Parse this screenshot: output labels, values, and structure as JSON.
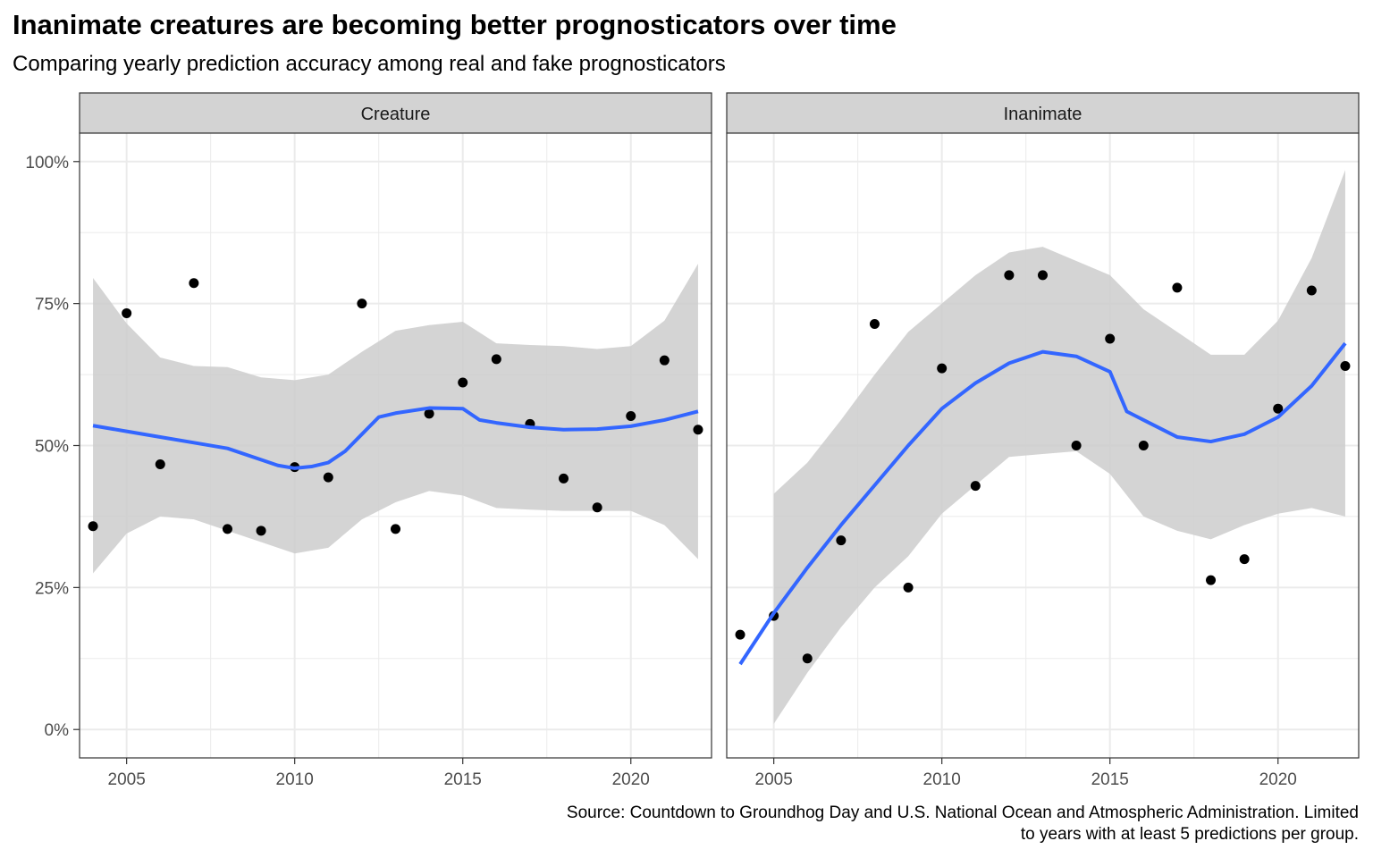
{
  "chart_data": {
    "type": "scatter",
    "title": "Inanimate creatures are becoming better prognosticators over time",
    "subtitle": "Comparing yearly prediction accuracy among real and fake prognosticators",
    "caption_lines": [
      "Source: Countdown to Groundhog Day and U.S. National Ocean and Atmospheric Administration. Limited",
      "to years with at least 5 predictions per group."
    ],
    "xlim": [
      2003.6,
      2022.4
    ],
    "ylim": [
      -0.05,
      1.05
    ],
    "x_ticks": [
      2005,
      2010,
      2015,
      2020
    ],
    "x_tick_labels": [
      "2005",
      "2010",
      "2015",
      "2020"
    ],
    "y_ticks": [
      0,
      0.25,
      0.5,
      0.75,
      1.0
    ],
    "y_tick_labels": [
      "0%",
      "25%",
      "50%",
      "75%",
      "100%"
    ],
    "grid": true,
    "colors": {
      "point": "#000000",
      "smooth_line": "#3366FF",
      "ribbon": "#CCCCCC",
      "strip": "#D3D3D3",
      "grid": "#EBEBEB"
    },
    "panels": [
      {
        "strip_label": "Creature",
        "points": [
          [
            2004,
            0.358
          ],
          [
            2005,
            0.733
          ],
          [
            2006,
            0.467
          ],
          [
            2007,
            0.786
          ],
          [
            2008,
            0.353
          ],
          [
            2009,
            0.35
          ],
          [
            2010,
            0.462
          ],
          [
            2011,
            0.444
          ],
          [
            2012,
            0.75
          ],
          [
            2013,
            0.353
          ],
          [
            2014,
            0.556
          ],
          [
            2015,
            0.611
          ],
          [
            2016,
            0.652
          ],
          [
            2017,
            0.538
          ],
          [
            2018,
            0.442
          ],
          [
            2019,
            0.391
          ],
          [
            2020,
            0.552
          ],
          [
            2021,
            0.65
          ],
          [
            2022,
            0.528
          ]
        ],
        "smooth": [
          [
            2004,
            0.535
          ],
          [
            2005,
            0.525
          ],
          [
            2006,
            0.515
          ],
          [
            2007,
            0.505
          ],
          [
            2008,
            0.495
          ],
          [
            2009,
            0.475
          ],
          [
            2009.5,
            0.465
          ],
          [
            2010,
            0.46
          ],
          [
            2010.5,
            0.463
          ],
          [
            2011,
            0.47
          ],
          [
            2011.5,
            0.49
          ],
          [
            2012,
            0.52
          ],
          [
            2012.5,
            0.55
          ],
          [
            2013,
            0.557
          ],
          [
            2014,
            0.566
          ],
          [
            2015,
            0.565
          ],
          [
            2015.5,
            0.545
          ],
          [
            2016,
            0.54
          ],
          [
            2017,
            0.532
          ],
          [
            2018,
            0.528
          ],
          [
            2019,
            0.529
          ],
          [
            2020,
            0.534
          ],
          [
            2021,
            0.545
          ],
          [
            2022,
            0.56
          ]
        ],
        "ribbon_upper": [
          [
            2004,
            0.795
          ],
          [
            2005,
            0.715
          ],
          [
            2006,
            0.655
          ],
          [
            2007,
            0.64
          ],
          [
            2008,
            0.638
          ],
          [
            2009,
            0.62
          ],
          [
            2010,
            0.615
          ],
          [
            2011,
            0.625
          ],
          [
            2012,
            0.665
          ],
          [
            2013,
            0.702
          ],
          [
            2014,
            0.712
          ],
          [
            2015,
            0.718
          ],
          [
            2016,
            0.68
          ],
          [
            2017,
            0.677
          ],
          [
            2018,
            0.675
          ],
          [
            2019,
            0.67
          ],
          [
            2020,
            0.675
          ],
          [
            2021,
            0.72
          ],
          [
            2022,
            0.82
          ]
        ],
        "ribbon_lower": [
          [
            2004,
            0.275
          ],
          [
            2005,
            0.345
          ],
          [
            2006,
            0.375
          ],
          [
            2007,
            0.37
          ],
          [
            2008,
            0.35
          ],
          [
            2009,
            0.33
          ],
          [
            2010,
            0.31
          ],
          [
            2011,
            0.32
          ],
          [
            2012,
            0.37
          ],
          [
            2013,
            0.4
          ],
          [
            2014,
            0.42
          ],
          [
            2015,
            0.412
          ],
          [
            2016,
            0.39
          ],
          [
            2017,
            0.387
          ],
          [
            2018,
            0.385
          ],
          [
            2019,
            0.385
          ],
          [
            2020,
            0.385
          ],
          [
            2021,
            0.36
          ],
          [
            2022,
            0.3
          ]
        ]
      },
      {
        "strip_label": "Inanimate",
        "points": [
          [
            2004,
            0.167
          ],
          [
            2005,
            0.2
          ],
          [
            2006,
            0.125
          ],
          [
            2007,
            0.333
          ],
          [
            2008,
            0.714
          ],
          [
            2009,
            0.25
          ],
          [
            2010,
            0.636
          ],
          [
            2011,
            0.429
          ],
          [
            2012,
            0.8
          ],
          [
            2013,
            0.8
          ],
          [
            2014,
            0.5
          ],
          [
            2015,
            0.688
          ],
          [
            2016,
            0.5
          ],
          [
            2017,
            0.778
          ],
          [
            2018,
            0.263
          ],
          [
            2019,
            0.3
          ],
          [
            2020,
            0.565
          ],
          [
            2021,
            0.773
          ],
          [
            2022,
            0.64
          ]
        ],
        "smooth": [
          [
            2004,
            0.115
          ],
          [
            2005,
            0.205
          ],
          [
            2006,
            0.285
          ],
          [
            2007,
            0.36
          ],
          [
            2008,
            0.43
          ],
          [
            2009,
            0.5
          ],
          [
            2010,
            0.565
          ],
          [
            2011,
            0.61
          ],
          [
            2012,
            0.645
          ],
          [
            2013,
            0.665
          ],
          [
            2014,
            0.657
          ],
          [
            2015,
            0.63
          ],
          [
            2015.5,
            0.56
          ],
          [
            2016,
            0.545
          ],
          [
            2017,
            0.515
          ],
          [
            2018,
            0.507
          ],
          [
            2019,
            0.52
          ],
          [
            2020,
            0.55
          ],
          [
            2021,
            0.605
          ],
          [
            2022,
            0.68
          ]
        ],
        "ribbon_upper": [
          [
            2005,
            0.415
          ],
          [
            2006,
            0.47
          ],
          [
            2007,
            0.545
          ],
          [
            2008,
            0.625
          ],
          [
            2009,
            0.7
          ],
          [
            2010,
            0.75
          ],
          [
            2011,
            0.8
          ],
          [
            2012,
            0.84
          ],
          [
            2013,
            0.85
          ],
          [
            2014,
            0.825
          ],
          [
            2015,
            0.8
          ],
          [
            2016,
            0.74
          ],
          [
            2017,
            0.7
          ],
          [
            2018,
            0.66
          ],
          [
            2019,
            0.66
          ],
          [
            2020,
            0.72
          ],
          [
            2021,
            0.83
          ],
          [
            2022,
            0.985
          ]
        ],
        "ribbon_lower": [
          [
            2005,
            0.01
          ],
          [
            2006,
            0.1
          ],
          [
            2007,
            0.18
          ],
          [
            2008,
            0.25
          ],
          [
            2009,
            0.305
          ],
          [
            2010,
            0.38
          ],
          [
            2011,
            0.43
          ],
          [
            2012,
            0.48
          ],
          [
            2013,
            0.485
          ],
          [
            2014,
            0.49
          ],
          [
            2015,
            0.45
          ],
          [
            2016,
            0.375
          ],
          [
            2017,
            0.35
          ],
          [
            2018,
            0.335
          ],
          [
            2019,
            0.36
          ],
          [
            2020,
            0.38
          ],
          [
            2021,
            0.39
          ],
          [
            2022,
            0.375
          ]
        ]
      }
    ]
  }
}
